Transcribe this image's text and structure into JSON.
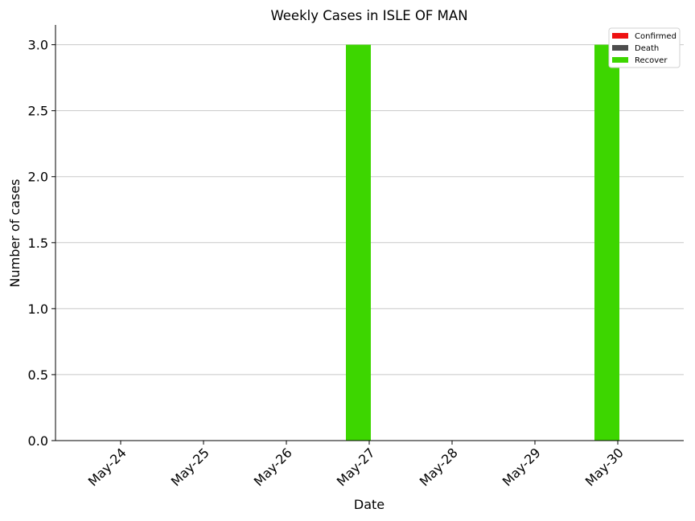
{
  "chart_data": {
    "type": "bar",
    "title": "Weekly Cases in ISLE OF MAN",
    "xlabel": "Date",
    "ylabel": "Number of cases",
    "categories": [
      "May-24",
      "May-25",
      "May-26",
      "May-27",
      "May-28",
      "May-29",
      "May-30"
    ],
    "series": [
      {
        "name": "Confirmed",
        "color": "#ee1111",
        "values": [
          0,
          0,
          0,
          0,
          0,
          0,
          0
        ]
      },
      {
        "name": "Death",
        "color": "#4d4d4d",
        "values": [
          0,
          0,
          0,
          0,
          0,
          0,
          0
        ]
      },
      {
        "name": "Recover",
        "color": "#3dd600",
        "values": [
          0,
          0,
          0,
          3,
          0,
          0,
          3
        ]
      }
    ],
    "ylim": [
      0,
      3.15
    ],
    "yticks": [
      "0.0",
      "0.5",
      "1.0",
      "1.5",
      "2.0",
      "2.5",
      "3.0"
    ],
    "grid": "horizontal",
    "legend_position": "top-right"
  }
}
